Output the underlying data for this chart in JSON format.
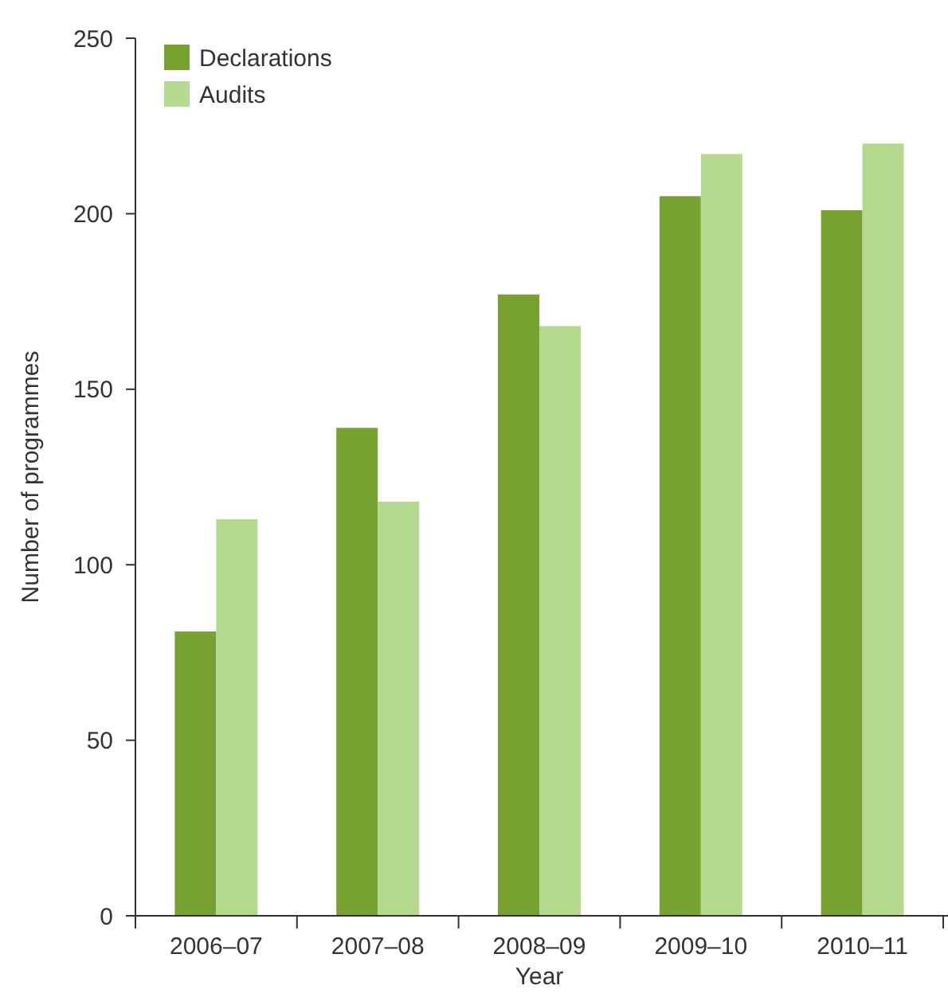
{
  "chart_data": {
    "type": "bar",
    "xlabel": "Year",
    "ylabel": "Number of programmes",
    "categories": [
      "2006–07",
      "2007–08",
      "2008–09",
      "2009–10",
      "2010–11"
    ],
    "series": [
      {
        "name": "Declarations",
        "color": "#78a22f",
        "values": [
          81,
          139,
          177,
          205,
          201
        ]
      },
      {
        "name": "Audits",
        "color": "#b5d98f",
        "values": [
          113,
          118,
          168,
          217,
          220
        ]
      }
    ],
    "ylim": [
      0,
      250
    ],
    "yticks": [
      0,
      50,
      100,
      150,
      200,
      250
    ],
    "grid": false,
    "legend": "top left"
  }
}
